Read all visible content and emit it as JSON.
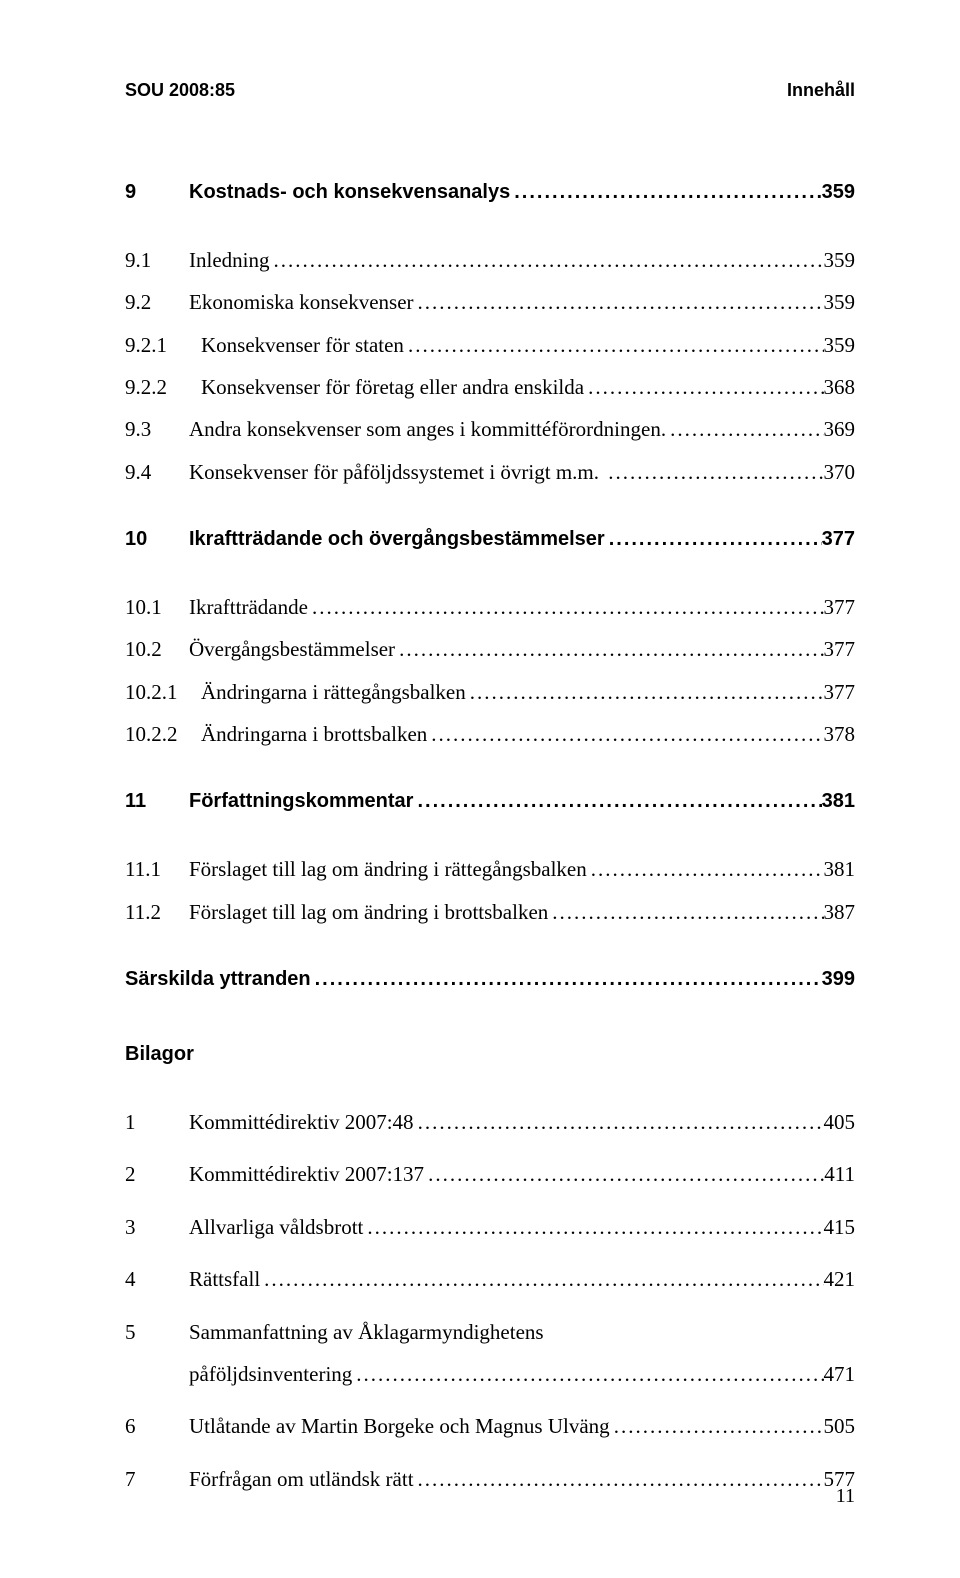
{
  "running_head_left": "SOU 2008:85",
  "running_head_right": "Innehåll",
  "entries": [
    {
      "type": "bold",
      "num": "9",
      "label": "Kostnads- och konsekvensanalys",
      "page": "359"
    },
    {
      "type": "gap-med"
    },
    {
      "type": "sub",
      "num": "9.1",
      "label": "Inledning",
      "page": "359"
    },
    {
      "type": "sub",
      "num": "9.2",
      "label": "Ekonomiska konsekvenser",
      "page": "359"
    },
    {
      "type": "subsub",
      "num": "9.2.1",
      "label": "Konsekvenser för staten",
      "page": "359"
    },
    {
      "type": "subsub",
      "num": "9.2.2",
      "label": "Konsekvenser för företag eller andra enskilda",
      "page": "368"
    },
    {
      "type": "sub",
      "num": "9.3",
      "label": "Andra konsekvenser som anges i kommittéförordningen.",
      "page": "369"
    },
    {
      "type": "sub",
      "num": "9.4",
      "label": "Konsekvenser för påföljdssystemet i övrigt m.m. ",
      "page": "370"
    },
    {
      "type": "gap-med"
    },
    {
      "type": "bold",
      "num": "10",
      "label": "Ikraftträdande och övergångsbestämmelser",
      "page": "377"
    },
    {
      "type": "gap-med"
    },
    {
      "type": "sub",
      "num": "10.1",
      "label": "Ikraftträdande",
      "page": "377"
    },
    {
      "type": "sub",
      "num": "10.2",
      "label": "Övergångsbestämmelser",
      "page": "377"
    },
    {
      "type": "subsub",
      "num": "10.2.1",
      "label": "Ändringarna i rättegångsbalken",
      "page": "377"
    },
    {
      "type": "subsub",
      "num": "10.2.2",
      "label": "Ändringarna i brottsbalken",
      "page": "378"
    },
    {
      "type": "gap-med"
    },
    {
      "type": "bold",
      "num": "11",
      "label": "Författningskommentar",
      "page": "381"
    },
    {
      "type": "gap-med"
    },
    {
      "type": "sub",
      "num": "11.1",
      "label": "Förslaget till lag om ändring i rättegångsbalken",
      "page": "381"
    },
    {
      "type": "sub",
      "num": "11.2",
      "label": "Förslaget till lag om ändring i brottsbalken",
      "page": "387"
    },
    {
      "type": "gap-med"
    },
    {
      "type": "bold",
      "num": "",
      "label": "Särskilda yttranden",
      "page": "399"
    },
    {
      "type": "gap-large"
    },
    {
      "type": "bold",
      "num": "",
      "label": "Bilagor",
      "page": ""
    },
    {
      "type": "gap-med"
    },
    {
      "type": "sub",
      "num": "1",
      "label": "Kommittédirektiv 2007:48",
      "page": "405"
    },
    {
      "type": "gap-small"
    },
    {
      "type": "sub",
      "num": "2",
      "label": "Kommittédirektiv 2007:137",
      "page": "411"
    },
    {
      "type": "gap-small"
    },
    {
      "type": "sub",
      "num": "3",
      "label": "Allvarliga våldsbrott",
      "page": "415"
    },
    {
      "type": "gap-small"
    },
    {
      "type": "sub",
      "num": "4",
      "label": "Rättsfall",
      "page": "421"
    },
    {
      "type": "gap-small"
    },
    {
      "type": "sub-wrap",
      "num": "5",
      "label_line1": "Sammanfattning av Åklagarmyndighetens",
      "label_line2": "påföljdsinventering",
      "page": "471"
    },
    {
      "type": "gap-small"
    },
    {
      "type": "sub",
      "num": "6",
      "label": "Utlåtande av Martin Borgeke och Magnus Ulväng",
      "page": "505"
    },
    {
      "type": "gap-small"
    },
    {
      "type": "sub",
      "num": "7",
      "label": "Förfrågan om utländsk rätt",
      "page": "577"
    }
  ],
  "footer_page": "11",
  "leader_dots": "...................................................................................................................."
}
